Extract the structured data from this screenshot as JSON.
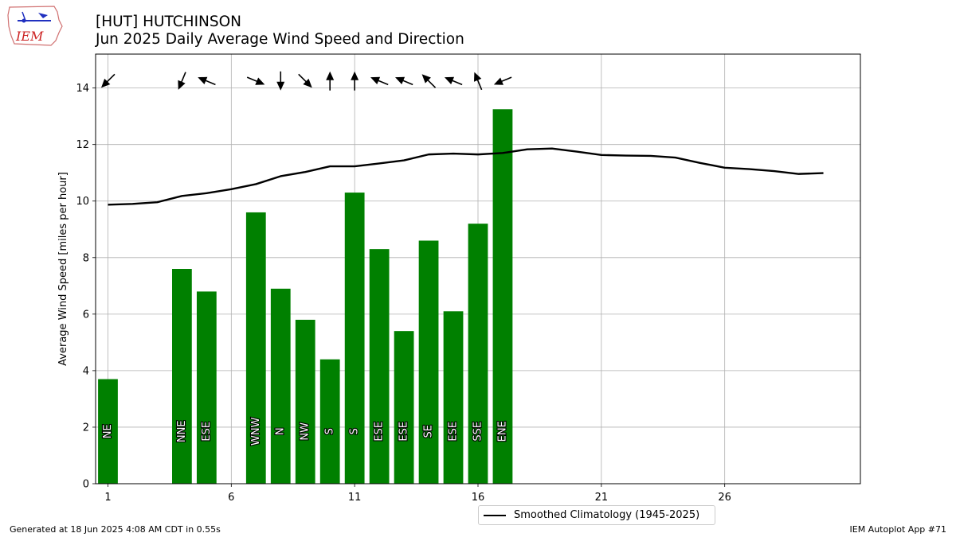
{
  "header": {
    "title_line1": "[HUT] HUTCHINSON",
    "title_line2": "Jun 2025 Daily Average Wind Speed and Direction",
    "logo_text": "IEM"
  },
  "footer": {
    "left": "Generated at 18 Jun 2025 4:08 AM CDT in 0.55s",
    "right": "IEM Autoplot App #71"
  },
  "legend": {
    "label": "Smoothed Climatology (1945-2025)"
  },
  "colors": {
    "bar": "#008000",
    "climatology": "#000000",
    "grid": "#b0b0b0"
  },
  "chart_data": {
    "type": "bar",
    "ylabel": "Average Wind Speed [miles per hour]",
    "xlabel": "",
    "xlim": [
      0.5,
      31.5
    ],
    "ylim": [
      0,
      15.2
    ],
    "xticks": [
      1,
      6,
      11,
      16,
      21,
      26
    ],
    "yticks": [
      0,
      2,
      4,
      6,
      8,
      10,
      12,
      14
    ],
    "grid": true,
    "legend_position": "bottom-center",
    "bars": [
      {
        "day": 1,
        "value": 3.7,
        "dir": "NE",
        "deg": 45
      },
      {
        "day": 4,
        "value": 7.6,
        "dir": "NNE",
        "deg": 22.5
      },
      {
        "day": 5,
        "value": 6.8,
        "dir": "ESE",
        "deg": 112.5
      },
      {
        "day": 7,
        "value": 9.6,
        "dir": "WNW",
        "deg": 292.5
      },
      {
        "day": 8,
        "value": 6.9,
        "dir": "N",
        "deg": 0
      },
      {
        "day": 9,
        "value": 5.8,
        "dir": "NW",
        "deg": 315
      },
      {
        "day": 10,
        "value": 4.4,
        "dir": "S",
        "deg": 180
      },
      {
        "day": 11,
        "value": 10.3,
        "dir": "S",
        "deg": 180
      },
      {
        "day": 12,
        "value": 8.3,
        "dir": "ESE",
        "deg": 112.5
      },
      {
        "day": 13,
        "value": 5.4,
        "dir": "ESE",
        "deg": 112.5
      },
      {
        "day": 14,
        "value": 8.6,
        "dir": "SE",
        "deg": 135
      },
      {
        "day": 15,
        "value": 6.1,
        "dir": "ESE",
        "deg": 112.5
      },
      {
        "day": 16,
        "value": 9.2,
        "dir": "SSE",
        "deg": 157.5
      },
      {
        "day": 17,
        "value": 13.25,
        "dir": "ENE",
        "deg": 67.5
      }
    ],
    "series": [
      {
        "name": "Smoothed Climatology (1945-2025)",
        "x": [
          1,
          2,
          3,
          4,
          5,
          6,
          7,
          8,
          9,
          10,
          11,
          12,
          13,
          14,
          15,
          16,
          17,
          18,
          19,
          20,
          21,
          22,
          23,
          24,
          25,
          26,
          27,
          28,
          29,
          30
        ],
        "values": [
          9.87,
          9.9,
          9.96,
          10.18,
          10.28,
          10.42,
          10.6,
          10.88,
          11.03,
          11.23,
          11.23,
          11.33,
          11.44,
          11.65,
          11.68,
          11.65,
          11.7,
          11.83,
          11.86,
          11.75,
          11.63,
          11.61,
          11.6,
          11.54,
          11.35,
          11.18,
          11.13,
          11.06,
          10.96,
          10.99
        ]
      }
    ]
  }
}
